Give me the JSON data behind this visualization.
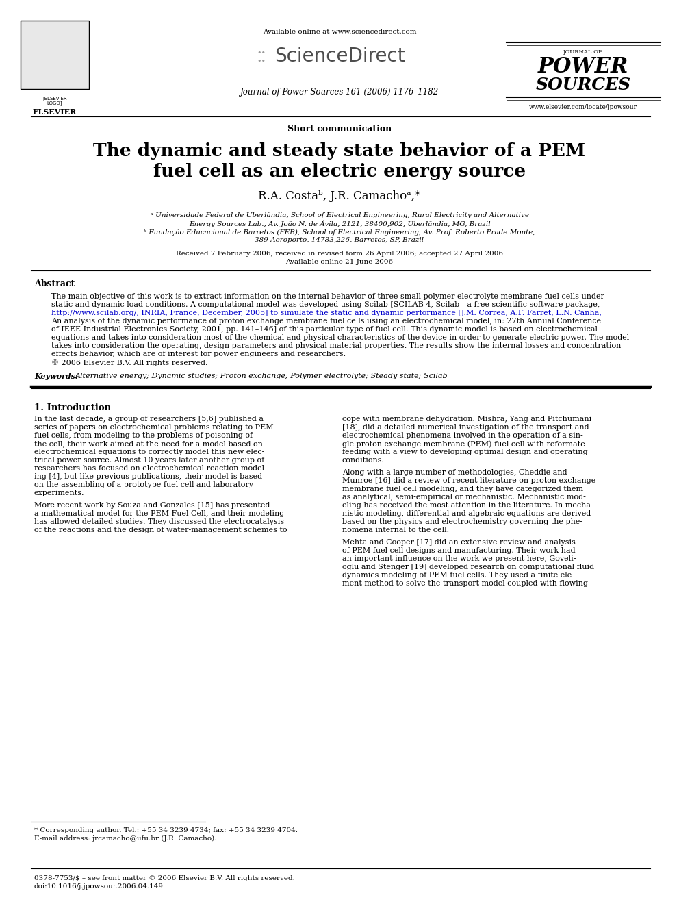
{
  "bg_color": "#ffffff",
  "page_width": 9.92,
  "page_height": 13.23,
  "header": {
    "available_online": "Available online at www.sciencedirect.com",
    "journal_line": "Journal of Power Sources 161 (2006) 1176–1182",
    "website": "www.elsevier.com/locate/jpowsour",
    "sciencedirect_text": "ScienceDirect",
    "journal_name_line1": "JOURNAL OF",
    "journal_name_line2": "POWER",
    "journal_name_line3": "SOURCES"
  },
  "section_type": "Short communication",
  "title_line1": "The dynamic and steady state behavior of a PEM",
  "title_line2": "fuel cell as an electric energy source",
  "authors": "R.A. Costaᵇ, J.R. Camachoᵃ,*",
  "affiliation_a": "ᵃ Universidade Federal de Uberlândia, School of Electrical Engineering, Rural Electricity and Alternative",
  "affiliation_a2": "Energy Sources Lab., Av. João N. de Ávila, 2121, 38400,902, Uberlândia, MG, Brazil",
  "affiliation_b": "ᵇ Fundação Educacional de Barretos (FEB), School of Electrical Engineering, Av. Prof. Roberto Prade Monte,",
  "affiliation_b2": "389 Aeroporto, 14783,226, Barretos, SP, Brazil",
  "received": "Received 7 February 2006; received in revised form 26 April 2006; accepted 27 April 2006",
  "available_online2": "Available online 21 June 2006",
  "abstract_title": "Abstract",
  "abstract_text": "The main objective of this work is to extract information on the internal behavior of three small polymer electrolyte membrane fuel cells under\nstatic and dynamic load conditions. A computational model was developed using Scilab [SCILAB 4, Scilab—a free scientific software package,\nhttp://www.scilab.org/, INRIA, France, December, 2005] to simulate the static and dynamic performance [J.M. Correa, A.F. Farret, L.N. Canha,\nAn analysis of the dynamic performance of proton exchange membrane fuel cells using an electrochemical model, in: 27th Annual Conference\nof IEEE Industrial Electronics Society, 2001, pp. 141–146] of this particular type of fuel cell. This dynamic model is based on electrochemical\nequations and takes into consideration most of the chemical and physical characteristics of the device in order to generate electric power. The model\ntakes into consideration the operating, design parameters and physical material properties. The results show the internal losses and concentration\neffects behavior, which are of interest for power engineers and researchers.\n© 2006 Elsevier B.V. All rights reserved.",
  "keywords_label": "Keywords:",
  "keywords_text": "Alternative energy; Dynamic studies; Proton exchange; Polymer electrolyte; Steady state; Scilab",
  "section1_title": "1. Introduction",
  "section1_left": "In the last decade, a group of researchers [5,6] published a\nseries of papers on electrochemical problems relating to PEM\nfuel cells, from modeling to the problems of poisoning of\nthe cell, their work aimed at the need for a model based on\nelectrochemical equations to correctly model this new elec-\ntrical power source. Almost 10 years later another group of\nresearchers has focused on electrochemical reaction model-\ning [4], but like previous publications, their model is based\non the assembling of a prototype fuel cell and laboratory\nexperiments.\n\nMore recent work by Souza and Gonzales [15] has presented\na mathematical model for the PEM Fuel Cell, and their modeling\nhas allowed detailed studies. They discussed the electrocatalysis\nof the reactions and the design of water-management schemes to",
  "section1_right": "cope with membrane dehydration. Mishra, Yang and Pitchumani\n[18], did a detailed numerical investigation of the transport and\nelectrochemical phenomena involved in the operation of a sin-\ngle proton exchange membrane (PEM) fuel cell with reformate\nfeeding with a view to developing optimal design and operating\nconditions.\n\nAlong with a large number of methodologies, Cheddie and\nMunroe [16] did a review of recent literature on proton exchange\nmembrane fuel cell modeling, and they have categorized them\nas analytical, semi-empirical or mechanistic. Mechanistic mod-\neling has received the most attention in the literature. In mecha-\nnistic modeling, differential and algebraic equations are derived\nbased on the physics and electrochemistry governing the phe-\nnomena internal to the cell.\n\nMehta and Cooper [17] did an extensive review and analysis\nof PEM fuel cell designs and manufacturing. Their work had\nan important influence on the work we present here, Goveli-\noglu and Stenger [19] developed research on computational fluid\ndynamics modeling of PEM fuel cells. They used a finite ele-\nment method to solve the transport model coupled with flowing",
  "footnote_star": "* Corresponding author. Tel.: +55 34 3239 4734; fax: +55 34 3239 4704.",
  "footnote_email": "E-mail address: jrcamacho@ufu.br (J.R. Camacho).",
  "footer_issn": "0378-7753/$ – see front matter © 2006 Elsevier B.V. All rights reserved.",
  "footer_doi": "doi:10.1016/j.jpowsour.2006.04.149"
}
